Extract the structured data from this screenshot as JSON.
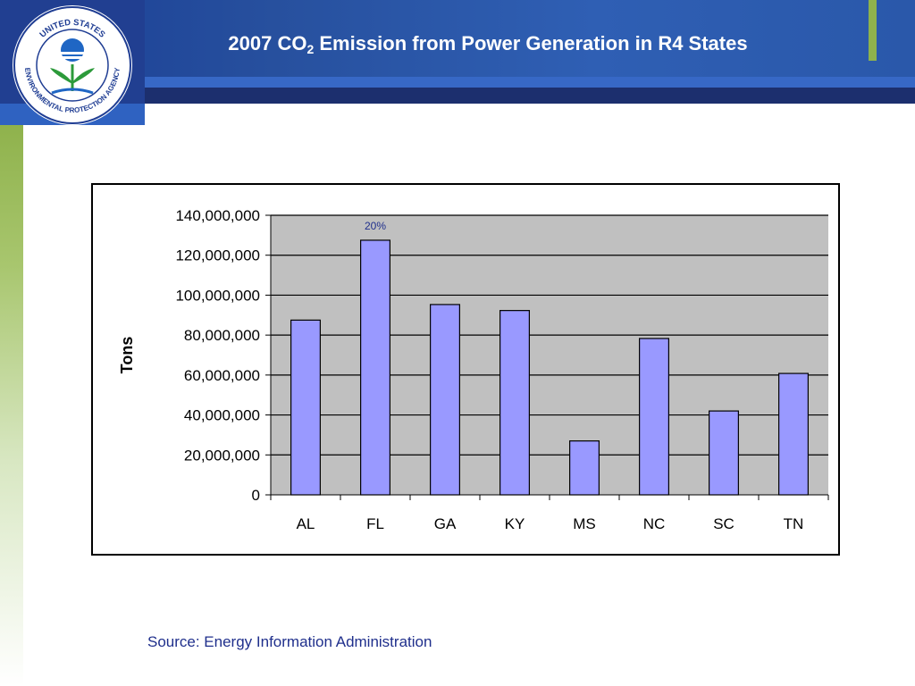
{
  "slide": {
    "title_prefix": "2007 CO",
    "title_sub": "2",
    "title_suffix": " Emission from Power Generation in R4 States",
    "source": "Source: Energy Information Administration"
  },
  "logo": {
    "text_top": "UNITED STATES",
    "text_bottom": "ENVIRONMENTAL PROTECTION AGENCY"
  },
  "colors": {
    "bar_fill": "#9999ff",
    "plot_bg": "#c0c0c0",
    "annotation": "#1f2f8c"
  },
  "chart_data": {
    "type": "bar",
    "categories": [
      "AL",
      "FL",
      "GA",
      "KY",
      "MS",
      "NC",
      "SC",
      "TN"
    ],
    "values": [
      87500000,
      127500000,
      95300000,
      92300000,
      27000000,
      78300000,
      42000000,
      60800000
    ],
    "ylabel": "Tons",
    "xlabel": "",
    "ylim": [
      0,
      140000000
    ],
    "yticks": [
      0,
      20000000,
      40000000,
      60000000,
      80000000,
      100000000,
      120000000,
      140000000
    ],
    "ytick_labels": [
      "0",
      "20,000,000",
      "40,000,000",
      "60,000,000",
      "80,000,000",
      "100,000,000",
      "120,000,000",
      "140,000,000"
    ],
    "grid": true,
    "annotations": [
      {
        "category": "FL",
        "text": "20%"
      }
    ]
  }
}
